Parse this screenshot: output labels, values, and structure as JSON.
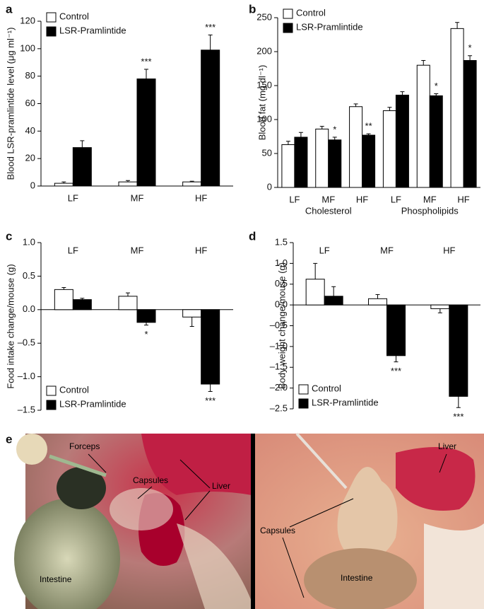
{
  "chart_data": [
    {
      "type": "bar",
      "panel_label": "a",
      "y_label": "Blood LSR-pramlintide level (μg ml⁻¹)",
      "categories": [
        "LF",
        "MF",
        "HF"
      ],
      "legend": "upper left",
      "ylim": [
        0,
        120
      ],
      "yticks": [
        0,
        20,
        40,
        60,
        80,
        100,
        120
      ],
      "series": [
        {
          "name": "Control",
          "color": "#ffffff",
          "values": [
            2,
            3,
            3
          ],
          "errors": [
            1,
            1,
            0.5
          ],
          "significance": [
            null,
            null,
            null
          ]
        },
        {
          "name": "LSR-Pramlintide",
          "color": "#000000",
          "values": [
            28,
            78,
            99
          ],
          "errors": [
            5,
            7,
            11
          ],
          "significance": [
            null,
            "***",
            "***"
          ]
        }
      ]
    },
    {
      "type": "bar",
      "panel_label": "b",
      "y_label": "Blood fat (mg dl⁻¹)",
      "categories": [
        "LF",
        "MF",
        "HF",
        "LF",
        "MF",
        "HF"
      ],
      "groups": [
        "Cholesterol",
        "Phospholipids"
      ],
      "legend": "upper left",
      "ylim": [
        0,
        250
      ],
      "yticks": [
        0,
        50,
        100,
        150,
        200,
        250
      ],
      "series": [
        {
          "name": "Control",
          "color": "#ffffff",
          "values": [
            63,
            86,
            119,
            113,
            180,
            234
          ],
          "errors": [
            5,
            4,
            4,
            5,
            7,
            9
          ],
          "significance": [
            null,
            null,
            null,
            null,
            null,
            null
          ]
        },
        {
          "name": "LSR-Pramlintide",
          "color": "#000000",
          "values": [
            74,
            70,
            77,
            136,
            135,
            187
          ],
          "errors": [
            7,
            4,
            2,
            5,
            3,
            7
          ],
          "significance": [
            null,
            "*",
            "**",
            null,
            "*",
            "*"
          ]
        }
      ]
    },
    {
      "type": "bar",
      "panel_label": "c",
      "y_label": "Food intake change/mouse (g)",
      "categories": [
        "LF",
        "MF",
        "HF"
      ],
      "legend": "lower left",
      "ylim": [
        -1.5,
        1.0
      ],
      "yticks": [
        {
          "value": -1.5,
          "label": "–1.5"
        },
        {
          "value": -1.0,
          "label": "–1.0"
        },
        {
          "value": -0.5,
          "label": "–0.5"
        },
        {
          "value": 0,
          "label": "0.0"
        },
        0.5,
        {
          "value": 1.0,
          "label": "1.0"
        }
      ],
      "series": [
        {
          "name": "Control",
          "color": "#ffffff",
          "values": [
            0.3,
            0.2,
            -0.11
          ],
          "errors": [
            0.03,
            0.05,
            0.14
          ],
          "significance": [
            null,
            null,
            null
          ]
        },
        {
          "name": "LSR-Pramlintide",
          "color": "#000000",
          "values": [
            0.15,
            -0.19,
            -1.11
          ],
          "errors": [
            0.02,
            0.04,
            0.11
          ],
          "significance": [
            null,
            "*",
            "***"
          ]
        }
      ]
    },
    {
      "type": "bar",
      "panel_label": "d",
      "y_label": "Body weight change/mouse (g)",
      "categories": [
        "LF",
        "MF",
        "HF"
      ],
      "legend": "lower left",
      "ylim": [
        -2.5,
        1.5
      ],
      "yticks": [
        {
          "value": -2.5,
          "label": "–2.5"
        },
        {
          "value": -2.0,
          "label": "–2.0"
        },
        {
          "value": -1.5,
          "label": "–1.5"
        },
        {
          "value": -1.0,
          "label": "–1.0"
        },
        {
          "value": -0.5,
          "label": "–0.5"
        },
        {
          "value": 0,
          "label": "0.0"
        },
        0.5,
        {
          "value": 1.0,
          "label": "1.0"
        },
        1.5
      ],
      "series": [
        {
          "name": "Control",
          "color": "#ffffff",
          "values": [
            0.62,
            0.15,
            -0.09
          ],
          "errors": [
            0.38,
            0.1,
            0.1
          ],
          "significance": [
            null,
            null,
            null
          ]
        },
        {
          "name": "LSR-Pramlintide",
          "color": "#000000",
          "values": [
            0.21,
            -1.22,
            -2.2
          ],
          "errors": [
            0.23,
            0.15,
            0.27
          ],
          "significance": [
            null,
            "***",
            "***"
          ]
        }
      ]
    }
  ],
  "photo": {
    "panel_label": "e",
    "left": [
      "Forceps",
      "Capsules",
      "Liver",
      "Intestine"
    ],
    "right": [
      "Liver",
      "Capsules",
      "Intestine"
    ]
  }
}
